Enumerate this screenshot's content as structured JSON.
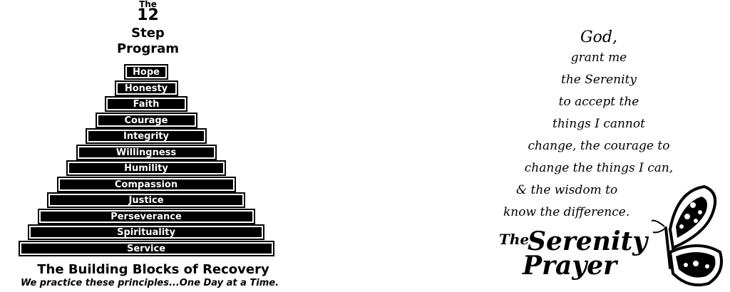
{
  "pyramid": {
    "title_the": "The",
    "title_number": "12",
    "title_step": "Step",
    "title_program": "Program",
    "steps": [
      "Hope",
      "Honesty",
      "Faith",
      "Courage",
      "Integrity",
      "Willingness",
      "Humility",
      "Compassion",
      "Justice",
      "Perseverance",
      "Spirituality",
      "Service"
    ],
    "footer_title": "The Building Blocks of Recovery",
    "footer_subtitle": "We practice these principles...One Day at a Time."
  },
  "prayer": {
    "lines": [
      "God,",
      "grant me",
      "the Serenity",
      "to accept the",
      "things I cannot",
      "change, the courage to",
      "change the things I can,",
      "& the wisdom to",
      "know the difference."
    ],
    "title_the": "The",
    "title_serenity": "Serenity",
    "title_prayer": "Prayer",
    "butterfly_icon": "butterfly-icon"
  }
}
